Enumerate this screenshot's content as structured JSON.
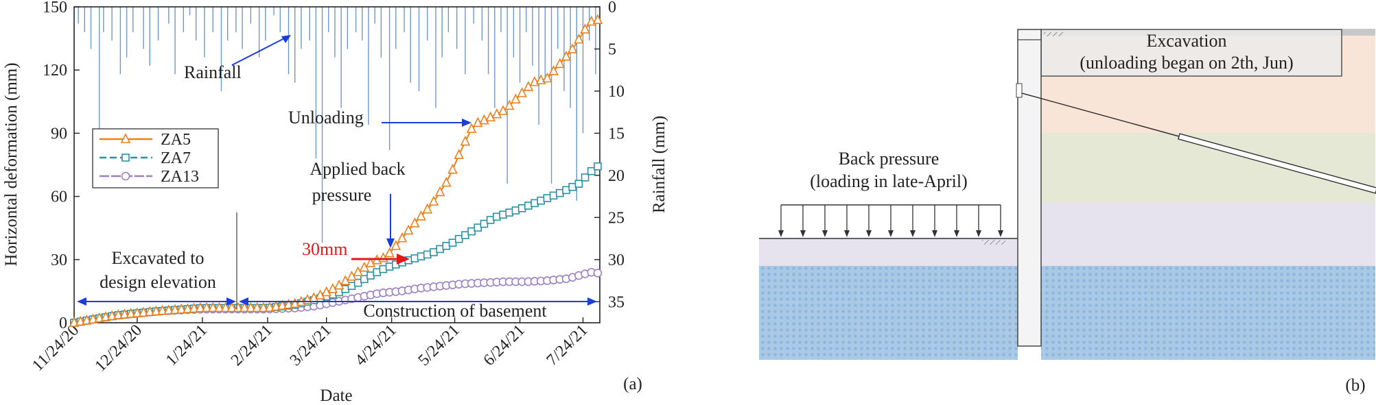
{
  "panel_a": {
    "label": "(a)",
    "xlabel": "Date",
    "ylabel_left": "Horizontal deformation (mm)",
    "ylabel_right": "Rainfall (mm)",
    "annotations": {
      "rainfall": "Rainfall",
      "unloading": "Unloading",
      "back_pressure_1": "Applied back",
      "back_pressure_2": "pressure",
      "thirty": "30mm",
      "excavated_1": "Excavated to",
      "excavated_2": "design elevation",
      "basement": "Construction of basement"
    }
  },
  "panel_b": {
    "label": "(b)",
    "excavation_1": "Excavation",
    "excavation_2": "(unloading began on 2th, Jun)",
    "back_pressure_1": "Back pressure",
    "back_pressure_2": "(loading in late-April)"
  },
  "chart_data": {
    "type": "line",
    "x": [
      "11/24/20",
      "12/24/20",
      "1/24/21",
      "2/24/21",
      "3/24/21",
      "4/24/21",
      "5/24/21",
      "6/24/21",
      "7/24/21"
    ],
    "x_days": [
      0,
      30,
      61,
      92,
      120,
      151,
      181,
      212,
      242
    ],
    "xlim": [
      0,
      250
    ],
    "ylim": [
      0,
      150
    ],
    "yticks": [
      0,
      30,
      60,
      90,
      120,
      150
    ],
    "y2lim": [
      0,
      37.5
    ],
    "y2ticks": [
      0,
      5,
      10,
      15,
      20,
      25,
      30,
      35
    ],
    "y2_inverted": true,
    "series": [
      {
        "name": "ZA5",
        "color": "#e8801e",
        "marker": "triangle",
        "x": [
          0,
          20,
          40,
          61,
          75,
          92,
          105,
          115,
          125,
          135,
          142,
          148,
          151,
          160,
          170,
          178,
          184,
          190,
          197,
          205,
          212,
          218,
          225,
          232,
          238,
          242,
          246,
          250
        ],
        "y": [
          0,
          3.5,
          5.5,
          7,
          7,
          7,
          9,
          12,
          17,
          24,
          29,
          31,
          34,
          45,
          56,
          68,
          82,
          94,
          97,
          101,
          108,
          114,
          116,
          124,
          131,
          138,
          143,
          144
        ]
      },
      {
        "name": "ZA7",
        "color": "#2a8fa0",
        "marker": "square",
        "x": [
          0,
          20,
          40,
          61,
          75,
          92,
          105,
          115,
          125,
          135,
          142,
          148,
          151,
          160,
          170,
          180,
          190,
          200,
          212,
          222,
          232,
          240,
          246,
          250
        ],
        "y": [
          0,
          3.5,
          5.5,
          7,
          7,
          7,
          8.5,
          11,
          14,
          19,
          23,
          26,
          27,
          30,
          33,
          38,
          44,
          50,
          54,
          58,
          62,
          66,
          72,
          75
        ]
      },
      {
        "name": "ZA13",
        "color": "#9b7fc4",
        "marker": "circle",
        "x": [
          0,
          20,
          40,
          61,
          75,
          92,
          105,
          115,
          125,
          135,
          145,
          155,
          165,
          175,
          185,
          195,
          205,
          215,
          225,
          235,
          242,
          246,
          250
        ],
        "y": [
          0,
          3.5,
          5.5,
          6.5,
          6.5,
          6.5,
          7,
          8,
          10,
          12,
          14,
          15,
          16.5,
          17.5,
          18.5,
          19,
          19.5,
          19.5,
          20,
          21,
          23,
          24,
          23.5
        ]
      }
    ],
    "rainfall": {
      "name": "Rainfall",
      "x": [
        2,
        5,
        8,
        12,
        14,
        18,
        22,
        25,
        28,
        33,
        36,
        40,
        45,
        48,
        52,
        55,
        58,
        62,
        66,
        70,
        73,
        77,
        80,
        84,
        88,
        91,
        95,
        98,
        102,
        105,
        108,
        112,
        115,
        118,
        121,
        124,
        127,
        130,
        134,
        137,
        140,
        143,
        146,
        150,
        153,
        157,
        160,
        164,
        168,
        172,
        175,
        178,
        182,
        186,
        190,
        194,
        197,
        200,
        203,
        206,
        209,
        212,
        215,
        218,
        221,
        224,
        227,
        230,
        233,
        236,
        239,
        242,
        245,
        248
      ],
      "values": [
        2,
        3,
        5,
        17,
        3,
        4,
        8,
        6,
        3,
        5,
        7,
        4,
        2,
        8,
        3,
        1,
        4,
        6,
        3,
        10,
        4,
        3,
        5,
        2,
        6,
        4,
        1,
        3,
        8,
        9,
        5,
        4,
        18,
        28,
        3,
        6,
        12,
        5,
        3,
        4,
        14,
        2,
        6,
        17,
        5,
        3,
        9,
        10,
        4,
        12,
        6,
        3,
        5,
        8,
        2,
        4,
        8,
        12,
        3,
        21,
        6,
        9,
        3,
        7,
        14,
        9,
        21,
        5,
        10,
        12,
        23,
        15,
        4,
        8
      ],
      "color": "#6e97c7"
    }
  }
}
